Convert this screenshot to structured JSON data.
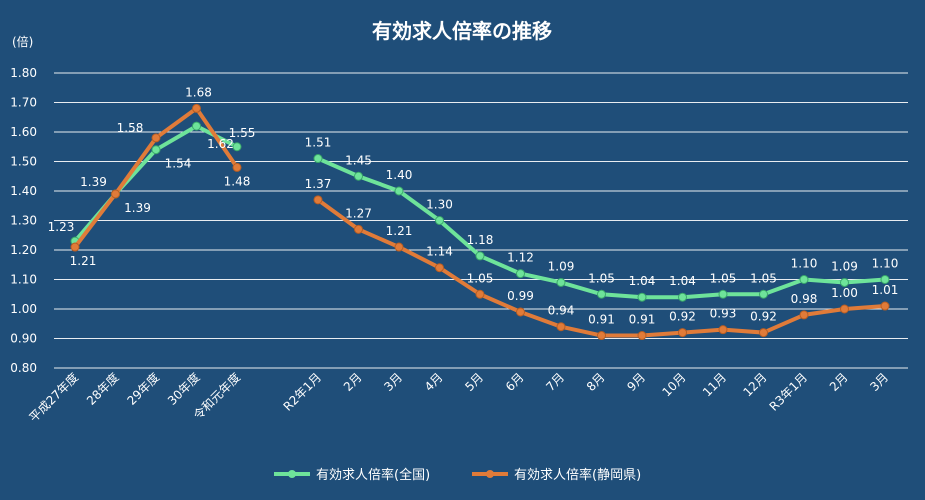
{
  "chart_data": {
    "type": "line",
    "title": "有効求人倍率の推移",
    "ylabel": "(倍)",
    "ylim": [
      0.8,
      1.8
    ],
    "yticks": [
      "0.80",
      "0.90",
      "1.00",
      "1.10",
      "1.20",
      "1.30",
      "1.40",
      "1.50",
      "1.60",
      "1.70",
      "1.80"
    ],
    "grid": true,
    "legend_position": "bottom",
    "categories": [
      "平成27年度",
      "28年度",
      "29年度",
      "30年度",
      "令和元年度",
      "",
      "R2年1月",
      "2月",
      "3月",
      "4月",
      "5月",
      "6月",
      "7月",
      "8月",
      "9月",
      "10月",
      "11月",
      "12月",
      "R3年1月",
      "2月",
      "3月"
    ],
    "series": [
      {
        "name": "有効求人倍率(全国)",
        "color": "#6ee39a",
        "values": [
          1.23,
          1.39,
          1.54,
          1.62,
          1.55,
          null,
          1.51,
          1.45,
          1.4,
          1.3,
          1.18,
          1.12,
          1.09,
          1.05,
          1.04,
          1.04,
          1.05,
          1.05,
          1.1,
          1.09,
          1.1
        ],
        "labels": [
          "1.23",
          "1.39",
          "1.54",
          "1.62",
          "1.55",
          "",
          "1.51",
          "1.45",
          "1.40",
          "1.30",
          "1.18",
          "1.12",
          "1.09",
          "1.05",
          "1.04",
          "1.04",
          "1.05",
          "1.05",
          "1.10",
          "1.09",
          "1.10"
        ]
      },
      {
        "name": "有効求人倍率(静岡県)",
        "color": "#e07b39",
        "values": [
          1.21,
          1.39,
          1.58,
          1.68,
          1.48,
          null,
          1.37,
          1.27,
          1.21,
          1.14,
          1.05,
          0.99,
          0.94,
          0.91,
          0.91,
          0.92,
          0.93,
          0.92,
          0.98,
          1.0,
          1.01
        ],
        "labels": [
          "1.21",
          "1.39",
          "1.58",
          "1.68",
          "1.48",
          "",
          "1.37",
          "1.27",
          "1.21",
          "1.14",
          "1.05",
          "0.99",
          "0.94",
          "0.91",
          "0.91",
          "0.92",
          "0.93",
          "0.92",
          "0.98",
          "1.00",
          "1.01"
        ]
      }
    ]
  }
}
